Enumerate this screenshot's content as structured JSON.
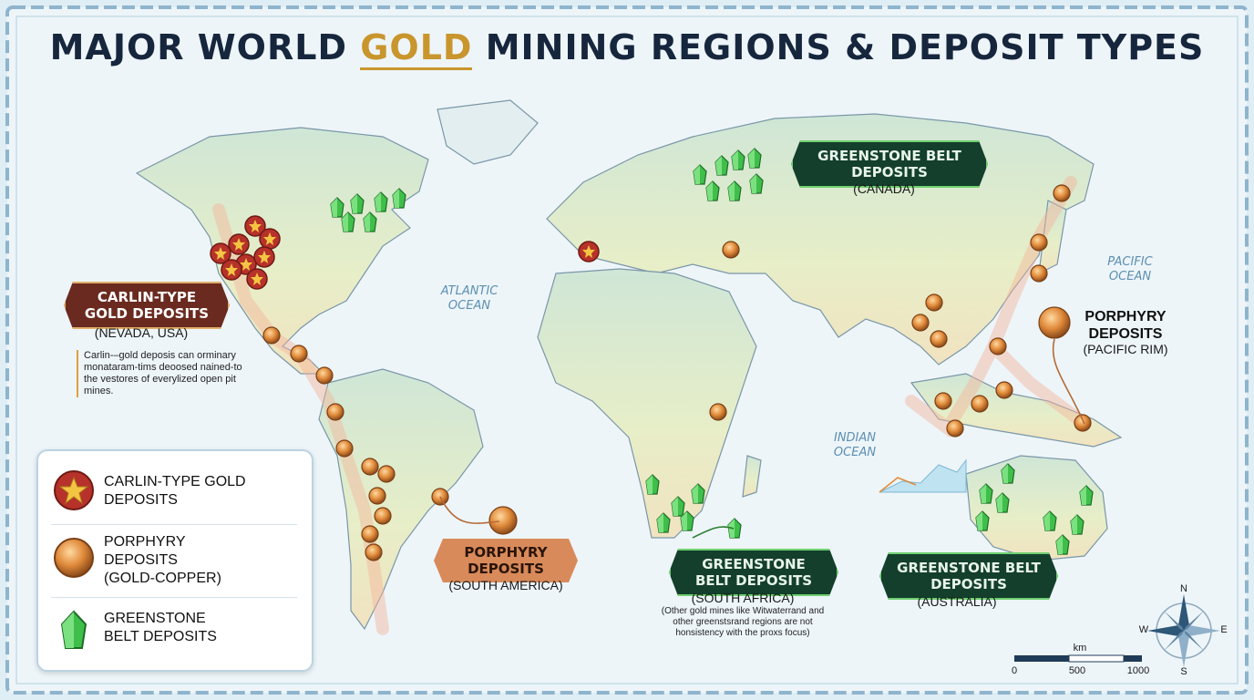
{
  "title": {
    "part1": "MAJOR WORLD ",
    "highlight": "GOLD",
    "part2": " MINING REGIONS & DEPOSIT TYPES"
  },
  "oceans": {
    "atlantic": "ATLANTIC OCEAN",
    "pacific": "PACIFIC OCEAN",
    "indian": "INDIAN OCEAN"
  },
  "regions": {
    "carlin": {
      "label": "CARLIN-TYPE GOLD DEPOSITS",
      "sub": "(NEVADA, USA)",
      "note": "Carlin-–gold deposis can orminary monataram-tims deoosed nained-to the vestores of everylized open pit mines."
    },
    "greenstone_canada": {
      "label": "GREENSTONE BELT DEPOSITS",
      "sub": "(CANADA)"
    },
    "porphyry_pacific": {
      "label": "PORPHYRY DEPOSITS",
      "sub": "(PACIFIC RIM)"
    },
    "porphyry_sa": {
      "label": "PORPHYRY DEPOSITS",
      "sub": "(SOUTH AMERICA)"
    },
    "greenstone_africa": {
      "label": "GREENSTONE BELT DEPOSITS",
      "sub": "(SOUTH AFRICA)",
      "note": "(Other gold mines like Witwaterrand and other greenstsrand regions are not honsistency with the proxs focus)"
    },
    "greenstone_australia": {
      "label": "GREENSTONE BELT DEPOSITS",
      "sub": "(AUSTRALIA)"
    }
  },
  "legend": {
    "items": [
      {
        "label": "CARLIN-TYPE GOLD DEPOSITS",
        "icon": "star-marker-icon"
      },
      {
        "label": "PORPHYRY DEPOSITS (GOLD-COPPER)",
        "icon": "copper-ball-icon"
      },
      {
        "label": "GREENSTONE BELT DEPOSITS",
        "icon": "green-crystal-icon"
      }
    ]
  },
  "scale": {
    "unit": "km",
    "ticks": [
      "0",
      "500",
      "1000"
    ]
  },
  "compass": {
    "n": "N",
    "s": "S",
    "e": "E",
    "w": "W"
  },
  "colors": {
    "gold": "#c9952d",
    "carlin_red": "#b7322a",
    "porphyry": "#e08a3a",
    "greenstone": "#3fbf4a",
    "navy": "#16263d"
  }
}
